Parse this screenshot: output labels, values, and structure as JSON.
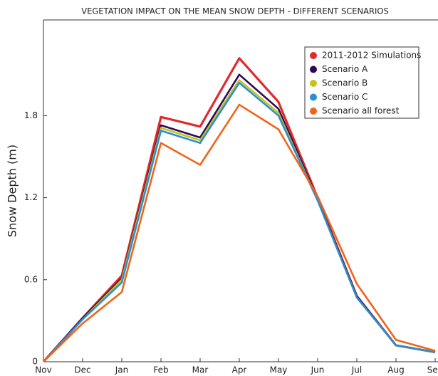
{
  "chart_data": {
    "type": "line",
    "title": "VEGETATION IMPACT ON THE MEAN SNOW DEPTH - DIFFERENT SCENARIOS",
    "y_label": "Snow Depth (m)",
    "categories": [
      "Nov",
      "Dec",
      "Jan",
      "Feb",
      "Mar",
      "Apr",
      "May",
      "Jun",
      "Jul",
      "Aug",
      "Sep"
    ],
    "ylim": [
      0,
      2.5
    ],
    "yticks": [
      0,
      0.6,
      1.2,
      1.8
    ],
    "grid": false,
    "legend": "upper right",
    "series": [
      {
        "name": "2011-2012 Simulations",
        "color": "#e0282e",
        "values": [
          0,
          0.32,
          0.63,
          1.79,
          1.72,
          2.22,
          1.9,
          1.2,
          0.48,
          0.12,
          0.07
        ]
      },
      {
        "name": "Scenario A",
        "color": "#2e0a55",
        "values": [
          0,
          0.32,
          0.61,
          1.73,
          1.64,
          2.1,
          1.85,
          1.19,
          0.48,
          0.12,
          0.07
        ]
      },
      {
        "name": "Scenario B",
        "color": "#c4c41c",
        "values": [
          0,
          0.31,
          0.6,
          1.71,
          1.62,
          2.06,
          1.82,
          1.18,
          0.47,
          0.12,
          0.07
        ]
      },
      {
        "name": "Scenario C",
        "color": "#2a8fd0",
        "values": [
          0,
          0.31,
          0.58,
          1.69,
          1.6,
          2.04,
          1.8,
          1.18,
          0.47,
          0.12,
          0.07
        ]
      },
      {
        "name": "Scenario all forest",
        "color": "#f0641a",
        "values": [
          0,
          0.28,
          0.51,
          1.6,
          1.44,
          1.88,
          1.7,
          1.21,
          0.57,
          0.16,
          0.08
        ]
      }
    ]
  }
}
